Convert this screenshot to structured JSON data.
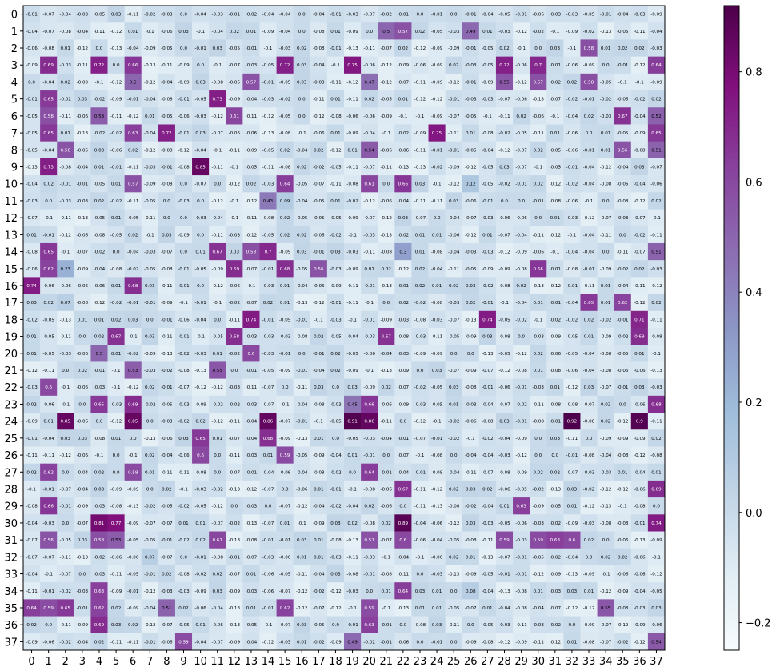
{
  "chart_data": {
    "type": "heatmap",
    "title": "",
    "xlabel": "",
    "ylabel": "",
    "x_categories": [
      "0",
      "1",
      "2",
      "3",
      "4",
      "5",
      "6",
      "7",
      "8",
      "9",
      "10",
      "11",
      "12",
      "13",
      "14",
      "15",
      "16",
      "17",
      "18",
      "19",
      "20",
      "21",
      "22",
      "23",
      "24",
      "25",
      "26",
      "27",
      "28",
      "29",
      "30",
      "31",
      "32",
      "33",
      "34",
      "35",
      "36",
      "37"
    ],
    "y_categories": [
      "0",
      "1",
      "2",
      "3",
      "4",
      "5",
      "6",
      "7",
      "8",
      "9",
      "10",
      "11",
      "12",
      "13",
      "14",
      "15",
      "16",
      "17",
      "18",
      "19",
      "20",
      "21",
      "22",
      "23",
      "24",
      "25",
      "26",
      "27",
      "28",
      "29",
      "30",
      "31",
      "32",
      "33",
      "34",
      "35",
      "36",
      "37"
    ],
    "colormap": "BuPu",
    "color_range": [
      -0.25,
      0.92
    ],
    "colorbar_ticks": [
      "0.8",
      "0.6",
      "0.4",
      "0.2",
      "0.0",
      "-0.2"
    ],
    "colorbar_tick_values": [
      0.8,
      0.6,
      0.4,
      0.2,
      0.0,
      -0.2
    ],
    "grid": false,
    "colorbar_position": "right",
    "highlights": [
      {
        "row": 1,
        "col": 21,
        "value": 0.5
      },
      {
        "row": 1,
        "col": 22,
        "value": 0.57
      },
      {
        "row": 1,
        "col": 26,
        "value": 0.49
      },
      {
        "row": 2,
        "col": 33,
        "value": 0.58
      },
      {
        "row": 3,
        "col": 1,
        "value": 0.69
      },
      {
        "row": 3,
        "col": 4,
        "value": 0.72
      },
      {
        "row": 3,
        "col": 6,
        "value": 0.66
      },
      {
        "row": 3,
        "col": 15,
        "value": 0.72
      },
      {
        "row": 3,
        "col": 19,
        "value": 0.75
      },
      {
        "row": 3,
        "col": 28,
        "value": 0.72
      },
      {
        "row": 3,
        "col": 30,
        "value": 0.7
      },
      {
        "row": 3,
        "col": 37,
        "value": 0.64
      },
      {
        "row": 4,
        "col": 6,
        "value": 0.5
      },
      {
        "row": 4,
        "col": 13,
        "value": 0.57
      },
      {
        "row": 4,
        "col": 20,
        "value": 0.47
      },
      {
        "row": 4,
        "col": 28,
        "value": 0.55
      },
      {
        "row": 4,
        "col": 30,
        "value": 0.57
      },
      {
        "row": 4,
        "col": 33,
        "value": 0.58
      },
      {
        "row": 5,
        "col": 1,
        "value": 0.65
      },
      {
        "row": 5,
        "col": 11,
        "value": 0.73
      },
      {
        "row": 6,
        "col": 1,
        "value": 0.58
      },
      {
        "row": 6,
        "col": 4,
        "value": 0.53
      },
      {
        "row": 6,
        "col": 12,
        "value": 0.61
      },
      {
        "row": 6,
        "col": 35,
        "value": 0.67
      },
      {
        "row": 6,
        "col": 37,
        "value": 0.52
      },
      {
        "row": 7,
        "col": 1,
        "value": 0.65
      },
      {
        "row": 7,
        "col": 6,
        "value": 0.63
      },
      {
        "row": 7,
        "col": 8,
        "value": 0.72
      },
      {
        "row": 7,
        "col": 24,
        "value": 0.75
      },
      {
        "row": 7,
        "col": 37,
        "value": 0.65
      },
      {
        "row": 8,
        "col": 2,
        "value": 0.56
      },
      {
        "row": 8,
        "col": 20,
        "value": 0.54
      },
      {
        "row": 8,
        "col": 35,
        "value": 0.56
      },
      {
        "row": 8,
        "col": 37,
        "value": 0.51
      },
      {
        "row": 9,
        "col": 1,
        "value": 0.73
      },
      {
        "row": 9,
        "col": 10,
        "value": 0.85
      },
      {
        "row": 10,
        "col": 6,
        "value": 0.57
      },
      {
        "row": 10,
        "col": 15,
        "value": 0.64
      },
      {
        "row": 10,
        "col": 20,
        "value": 0.61
      },
      {
        "row": 10,
        "col": 22,
        "value": 0.66
      },
      {
        "row": 10,
        "col": 26,
        "value": 0.12
      },
      {
        "row": 11,
        "col": 14,
        "value": 0.43
      },
      {
        "row": 11,
        "col": 15,
        "value": 0.09
      },
      {
        "row": 14,
        "col": 1,
        "value": 0.65
      },
      {
        "row": 14,
        "col": 11,
        "value": 0.67
      },
      {
        "row": 14,
        "col": 13,
        "value": 0.58
      },
      {
        "row": 14,
        "col": 14,
        "value": 0.7
      },
      {
        "row": 14,
        "col": 22,
        "value": 0.3
      },
      {
        "row": 14,
        "col": 37,
        "value": 0.51
      },
      {
        "row": 15,
        "col": 1,
        "value": 0.62
      },
      {
        "row": 15,
        "col": 2,
        "value": 0.23
      },
      {
        "row": 15,
        "col": 12,
        "value": 0.69
      },
      {
        "row": 15,
        "col": 15,
        "value": 0.68
      },
      {
        "row": 15,
        "col": 17,
        "value": 0.56
      },
      {
        "row": 15,
        "col": 30,
        "value": 0.66
      },
      {
        "row": 16,
        "col": 0,
        "value": 0.74
      },
      {
        "row": 16,
        "col": 6,
        "value": 0.68
      },
      {
        "row": 17,
        "col": 2,
        "value": 0.07
      },
      {
        "row": 17,
        "col": 33,
        "value": 0.65
      },
      {
        "row": 17,
        "col": 35,
        "value": 0.62
      },
      {
        "row": 18,
        "col": 13,
        "value": 0.74
      },
      {
        "row": 18,
        "col": 27,
        "value": 0.74
      },
      {
        "row": 18,
        "col": 36,
        "value": 0.71
      },
      {
        "row": 19,
        "col": 5,
        "value": 0.67
      },
      {
        "row": 19,
        "col": 12,
        "value": 0.68
      },
      {
        "row": 19,
        "col": 21,
        "value": 0.67
      },
      {
        "row": 19,
        "col": 36,
        "value": 0.69
      },
      {
        "row": 20,
        "col": 4,
        "value": 0.5
      },
      {
        "row": 20,
        "col": 13,
        "value": 0.6
      },
      {
        "row": 21,
        "col": 6,
        "value": 0.53
      },
      {
        "row": 21,
        "col": 11,
        "value": 0.55
      },
      {
        "row": 22,
        "col": 1,
        "value": 0.6
      },
      {
        "row": 23,
        "col": 4,
        "value": 0.65
      },
      {
        "row": 23,
        "col": 6,
        "value": 0.69
      },
      {
        "row": 23,
        "col": 19,
        "value": 0.45
      },
      {
        "row": 23,
        "col": 20,
        "value": 0.66
      },
      {
        "row": 23,
        "col": 37,
        "value": 0.68
      },
      {
        "row": 24,
        "col": 2,
        "value": 0.85
      },
      {
        "row": 24,
        "col": 6,
        "value": 0.85
      },
      {
        "row": 24,
        "col": 14,
        "value": 0.86
      },
      {
        "row": 24,
        "col": 19,
        "value": 0.91
      },
      {
        "row": 24,
        "col": 20,
        "value": 0.86
      },
      {
        "row": 24,
        "col": 32,
        "value": 0.92
      },
      {
        "row": 24,
        "col": 36,
        "value": 0.9
      },
      {
        "row": 25,
        "col": 10,
        "value": 0.65
      },
      {
        "row": 25,
        "col": 14,
        "value": 0.68
      },
      {
        "row": 26,
        "col": 10,
        "value": 0.6
      },
      {
        "row": 26,
        "col": 15,
        "value": 0.59
      },
      {
        "row": 27,
        "col": 1,
        "value": 0.62
      },
      {
        "row": 27,
        "col": 6,
        "value": 0.59
      },
      {
        "row": 27,
        "col": 20,
        "value": 0.64
      },
      {
        "row": 28,
        "col": 22,
        "value": 0.67
      },
      {
        "row": 28,
        "col": 37,
        "value": 0.69
      },
      {
        "row": 29,
        "col": 1,
        "value": 0.66
      },
      {
        "row": 29,
        "col": 29,
        "value": 0.63
      },
      {
        "row": 30,
        "col": 4,
        "value": 0.81
      },
      {
        "row": 30,
        "col": 5,
        "value": 0.77
      },
      {
        "row": 30,
        "col": 22,
        "value": 0.89
      },
      {
        "row": 30,
        "col": 37,
        "value": 0.74
      },
      {
        "row": 31,
        "col": 1,
        "value": 0.56
      },
      {
        "row": 31,
        "col": 4,
        "value": 0.58
      },
      {
        "row": 31,
        "col": 5,
        "value": 0.53
      },
      {
        "row": 31,
        "col": 11,
        "value": 0.61
      },
      {
        "row": 31,
        "col": 20,
        "value": 0.57
      },
      {
        "row": 31,
        "col": 22,
        "value": 0.6
      },
      {
        "row": 31,
        "col": 28,
        "value": 0.59
      },
      {
        "row": 31,
        "col": 30,
        "value": 0.59
      },
      {
        "row": 31,
        "col": 31,
        "value": 0.63
      },
      {
        "row": 31,
        "col": 32,
        "value": 0.6
      },
      {
        "row": 32,
        "col": 7,
        "value": 0.07
      },
      {
        "row": 34,
        "col": 4,
        "value": 0.63
      },
      {
        "row": 34,
        "col": 22,
        "value": 0.64
      },
      {
        "row": 34,
        "col": 26,
        "value": 0.08
      },
      {
        "row": 35,
        "col": 0,
        "value": 0.64
      },
      {
        "row": 35,
        "col": 1,
        "value": 0.59
      },
      {
        "row": 35,
        "col": 2,
        "value": 0.65
      },
      {
        "row": 35,
        "col": 4,
        "value": 0.62
      },
      {
        "row": 35,
        "col": 8,
        "value": 0.51
      },
      {
        "row": 35,
        "col": 15,
        "value": 0.62
      },
      {
        "row": 35,
        "col": 20,
        "value": 0.59
      },
      {
        "row": 35,
        "col": 34,
        "value": 0.55
      },
      {
        "row": 36,
        "col": 4,
        "value": 0.69
      },
      {
        "row": 36,
        "col": 20,
        "value": 0.63
      },
      {
        "row": 37,
        "col": 9,
        "value": 0.59
      },
      {
        "row": 37,
        "col": 19,
        "value": 0.49
      },
      {
        "row": 37,
        "col": 37,
        "value": 0.54
      }
    ],
    "background_value_note": "remaining cells hold small values between -0.25 and 0.05",
    "sample_rows": {
      "0": [
        -0.01,
        -0.07,
        -0.04,
        -0.03,
        -0.05,
        0.03,
        -0.11,
        -0.02,
        -0.03,
        -0.0,
        -0.04,
        -0.03,
        -0.01,
        -0.02,
        -0.04,
        -0.04,
        -0.0,
        -0.04,
        -0.01,
        -0.03,
        -0.07,
        -0.02,
        -0.01,
        -0.0,
        -0.01,
        0.0,
        -0.01,
        -0.04,
        -0.05,
        -0.01,
        -0.06,
        -0.03,
        -0.03,
        -0.05,
        -0.01,
        -0.04,
        -0.03,
        -0.09
      ]
    }
  }
}
